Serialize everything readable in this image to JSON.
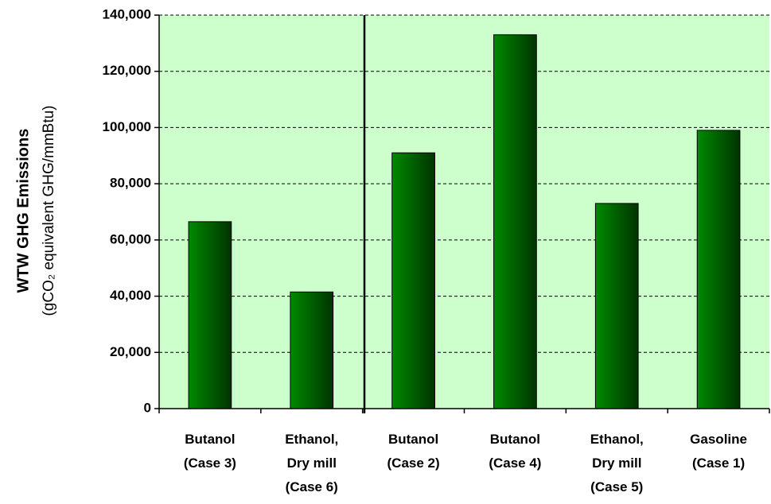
{
  "chart_data": {
    "type": "bar",
    "y_axis_label": "WTW GHG Emissions",
    "y_axis_sublabel": "(gCO₂ equivalent GHG/mmBtu)",
    "categories": [
      "Butanol\n(Case 3)",
      "Ethanol,\nDry mill\n(Case 6)",
      "Butanol\n(Case 2)",
      "Butanol\n(Case 4)",
      "Ethanol,\nDry mill\n(Case 5)",
      "Gasoline\n(Case 1)"
    ],
    "values": [
      66500,
      41500,
      91000,
      133000,
      73000,
      99000
    ],
    "color": "#007a00",
    "ylim": [
      0,
      140000
    ],
    "yticks": [
      0,
      {
        "value": 20000,
        "label": "20,000"
      },
      {
        "value": 40000,
        "label": "40,000"
      },
      {
        "value": 60000,
        "label": "60,000"
      },
      {
        "value": 80000,
        "label": "80,000"
      },
      {
        "value": 100000,
        "label": "100,000"
      },
      {
        "value": 120000,
        "label": "120,000"
      },
      {
        "value": 140000,
        "label": "140,000"
      }
    ],
    "grid": true,
    "background": "#ccffcc"
  }
}
